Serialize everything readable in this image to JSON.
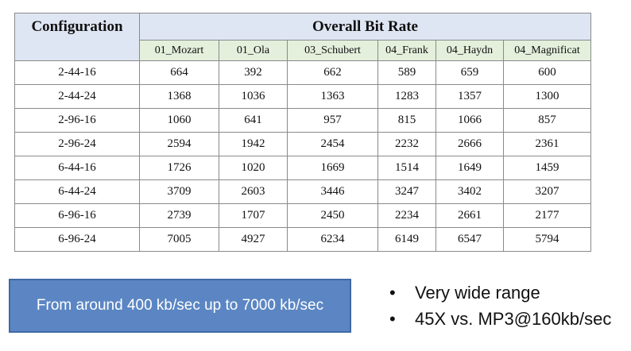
{
  "table": {
    "config_header": "Configuration",
    "group_header": "Overall Bit Rate",
    "columns": [
      "01_Mozart",
      "01_Ola",
      "03_Schubert",
      "04_Frank",
      "04_Haydn",
      "04_Magnificat"
    ],
    "rows": [
      {
        "config": "2-44-16",
        "values": [
          "664",
          "392",
          "662",
          "589",
          "659",
          "600"
        ]
      },
      {
        "config": "2-44-24",
        "values": [
          "1368",
          "1036",
          "1363",
          "1283",
          "1357",
          "1300"
        ]
      },
      {
        "config": "2-96-16",
        "values": [
          "1060",
          "641",
          "957",
          "815",
          "1066",
          "857"
        ]
      },
      {
        "config": "2-96-24",
        "values": [
          "2594",
          "1942",
          "2454",
          "2232",
          "2666",
          "2361"
        ]
      },
      {
        "config": "6-44-16",
        "values": [
          "1726",
          "1020",
          "1669",
          "1514",
          "1649",
          "1459"
        ]
      },
      {
        "config": "6-44-24",
        "values": [
          "3709",
          "2603",
          "3446",
          "3247",
          "3402",
          "3207"
        ]
      },
      {
        "config": "6-96-16",
        "values": [
          "2739",
          "1707",
          "2450",
          "2234",
          "2661",
          "2177"
        ]
      },
      {
        "config": "6-96-24",
        "values": [
          "7005",
          "4927",
          "6234",
          "6149",
          "6547",
          "5794"
        ]
      }
    ]
  },
  "callout": {
    "text": "From around 400 kb/sec up to 7000 kb/sec"
  },
  "bullets": {
    "marker": "•",
    "items": [
      "Very wide range",
      "45X vs. MP3@160kb/sec"
    ]
  },
  "colors": {
    "header_blue": "#dfe6f3",
    "header_green": "#e4efdc",
    "callout_fill": "#5b86c3",
    "callout_border": "#3f6aa4"
  }
}
